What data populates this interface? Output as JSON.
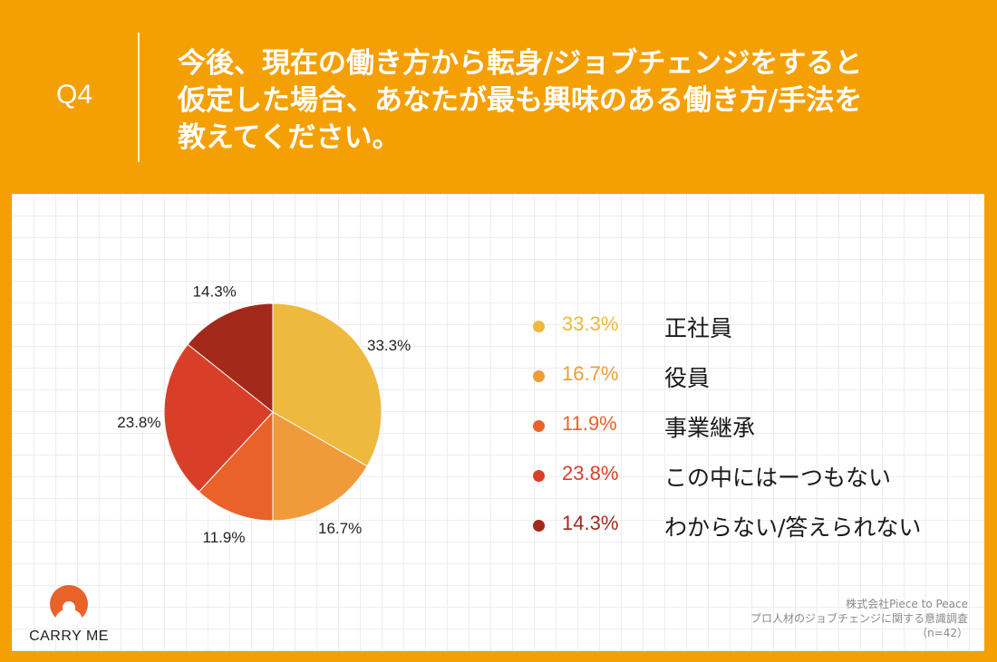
{
  "header": {
    "question_number": "Q4",
    "question_lines": [
      "今後、現在の働き方から転身/ジョブチェンジをすると",
      "仮定した場合、あなたが最も興味のある働き方/手法を",
      "教えてください。"
    ]
  },
  "chart_data": {
    "type": "pie",
    "title": "",
    "slices": [
      {
        "label": "正社員",
        "value": 33.3,
        "display": "33.3%",
        "color": "#EDB93E"
      },
      {
        "label": "役員",
        "value": 16.7,
        "display": "16.7%",
        "color": "#F09A3A"
      },
      {
        "label": "事業継承",
        "value": 11.9,
        "display": "11.9%",
        "color": "#E9622A"
      },
      {
        "label": "この中にはーつもない",
        "value": 23.8,
        "display": "23.8%",
        "color": "#D93F28"
      },
      {
        "label": "わからない/答えられない",
        "value": 14.3,
        "display": "14.3%",
        "color": "#A3291B"
      }
    ],
    "legend_position": "right"
  },
  "logo": {
    "text": "CARRY ME",
    "color": "#E9622A"
  },
  "source": {
    "company": "株式会社Piece to Peace",
    "survey": "プロ人材のジョブチェンジに関する意識調査",
    "sample": "（n=42）"
  }
}
